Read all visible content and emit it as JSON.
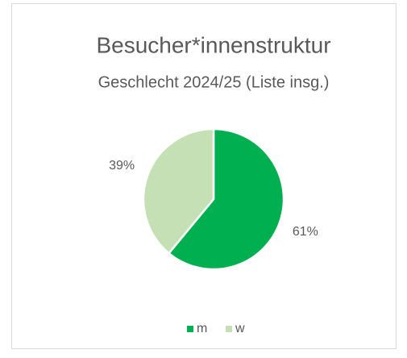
{
  "chart_data": {
    "type": "pie",
    "title": "Besucher*innenstruktur",
    "subtitle": "Geschlecht 2024/25 (Liste insg.)",
    "categories": [
      "m",
      "w"
    ],
    "values": [
      61,
      39
    ],
    "value_labels": [
      "61%",
      "39%"
    ],
    "colors": [
      "#00b050",
      "#c5e0b4"
    ],
    "legend": "bottom"
  }
}
